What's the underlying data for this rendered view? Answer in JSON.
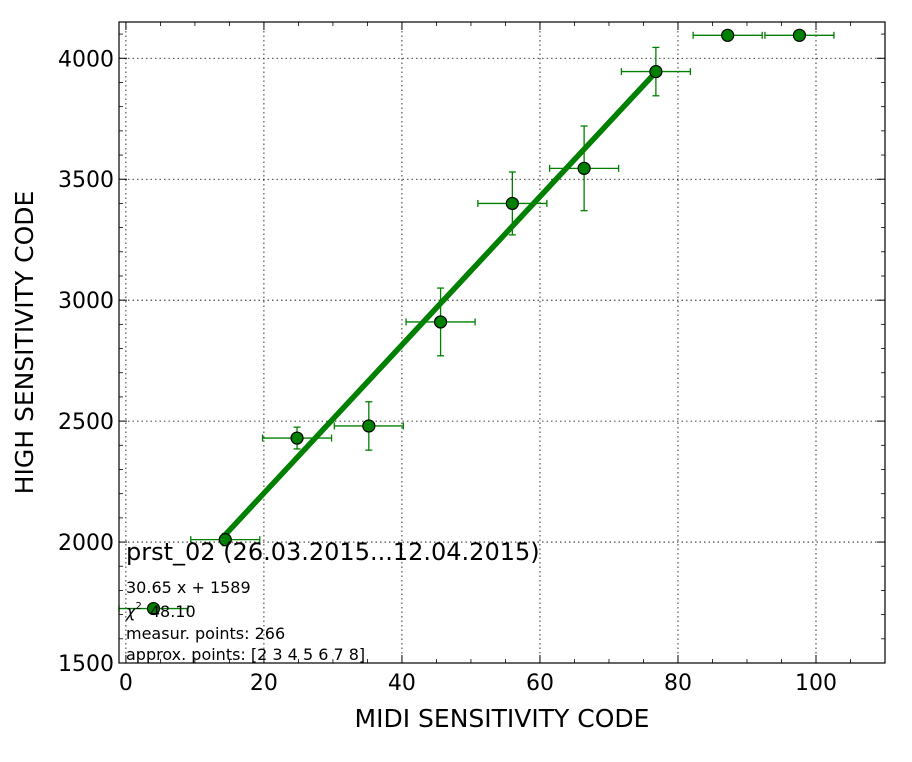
{
  "chart_data": {
    "type": "scatter",
    "xlabel": "MIDI SENSITIVITY CODE",
    "ylabel": "HIGH SENSITIVITY CODE",
    "xlim": [
      -1,
      110
    ],
    "ylim": [
      1500,
      4150
    ],
    "xticks": [
      0,
      20,
      40,
      60,
      80,
      100
    ],
    "yticks": [
      1500,
      2000,
      2500,
      3000,
      3500,
      4000
    ],
    "grid": true,
    "colors": {
      "series": "#008000",
      "marker_edge": "#000000",
      "fit": "#008000"
    },
    "points": [
      {
        "x": 4,
        "y": 1725,
        "xerr": 5,
        "yerr": 0
      },
      {
        "x": 14.4,
        "y": 2010,
        "xerr": 5,
        "yerr": 25
      },
      {
        "x": 24.8,
        "y": 2430,
        "xerr": 5,
        "yerr": 45
      },
      {
        "x": 35.2,
        "y": 2480,
        "xerr": 5,
        "yerr": 100
      },
      {
        "x": 45.6,
        "y": 2910,
        "xerr": 5,
        "yerr": 140
      },
      {
        "x": 56,
        "y": 3400,
        "xerr": 5,
        "yerr": 130
      },
      {
        "x": 66.4,
        "y": 3545,
        "xerr": 5,
        "yerr": 175
      },
      {
        "x": 76.8,
        "y": 3945,
        "xerr": 5,
        "yerr": 100
      },
      {
        "x": 87.2,
        "y": 4095,
        "xerr": 5,
        "yerr": 0
      },
      {
        "x": 97.6,
        "y": 4095,
        "xerr": 5,
        "yerr": 0
      }
    ],
    "fit": {
      "slope": 30.65,
      "intercept": 1589,
      "x_range": [
        14.4,
        76.8
      ]
    },
    "annotations": {
      "title": "prst_02 (26.03.2015...12.04.2015)",
      "equation": "30.65 x + 1589",
      "chi_symbol": "χ",
      "chi_sup": "2",
      "chi_value": "48.10",
      "measur_points": "measur. points: 266",
      "approx_points": "approx. points: [2 3 4 5 6 7 8]"
    }
  }
}
